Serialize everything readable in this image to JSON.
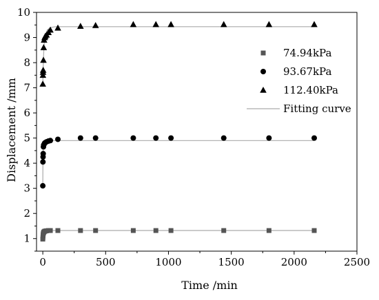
{
  "chart_data": {
    "type": "scatter",
    "xlabel": "Time /min",
    "ylabel": "Displacement /mm",
    "xlim": [
      -50,
      2500
    ],
    "ylim": [
      0.5,
      10
    ],
    "xticks": [
      "0",
      "500",
      "1000",
      "1500",
      "2000",
      "2500"
    ],
    "yticks": [
      "1",
      "2",
      "3",
      "4",
      "5",
      "6",
      "7",
      "8",
      "9",
      "10"
    ],
    "legend_position": "top-right",
    "colors": {
      "series_74": "#555555",
      "series_93": "#000000",
      "series_112": "#000000",
      "fit": "#aaaaaa",
      "axis": "#000000"
    },
    "series": [
      {
        "name": "74.94kPa",
        "marker": "square",
        "x": [
          0,
          1,
          2,
          3,
          5,
          7,
          10,
          15,
          20,
          30,
          45,
          60,
          120,
          300,
          420,
          720,
          900,
          1020,
          1440,
          1800,
          2160
        ],
        "y": [
          0.98,
          1.05,
          1.12,
          1.18,
          1.22,
          1.25,
          1.27,
          1.29,
          1.3,
          1.31,
          1.32,
          1.32,
          1.32,
          1.32,
          1.32,
          1.32,
          1.32,
          1.32,
          1.32,
          1.32,
          1.32
        ]
      },
      {
        "name": "93.67kPa",
        "marker": "circle",
        "x": [
          0,
          1,
          2,
          3,
          5,
          7,
          10,
          15,
          20,
          30,
          45,
          60,
          120,
          300,
          420,
          720,
          900,
          1020,
          1440,
          1800,
          2160
        ],
        "y": [
          3.1,
          4.05,
          4.25,
          4.38,
          4.65,
          4.72,
          4.75,
          4.8,
          4.82,
          4.85,
          4.88,
          4.9,
          4.95,
          5.0,
          5.0,
          5.0,
          5.0,
          5.0,
          5.0,
          5.0,
          5.0
        ]
      },
      {
        "name": "112.40kPa",
        "marker": "triangle",
        "x": [
          0,
          1,
          2,
          3,
          5,
          7,
          10,
          15,
          20,
          30,
          45,
          60,
          120,
          300,
          420,
          720,
          900,
          1020,
          1440,
          1800,
          2160
        ],
        "y": [
          7.15,
          7.5,
          7.62,
          7.7,
          8.1,
          8.6,
          8.9,
          9.0,
          9.05,
          9.1,
          9.2,
          9.3,
          9.38,
          9.45,
          9.48,
          9.52,
          9.52,
          9.52,
          9.52,
          9.52,
          9.52
        ]
      }
    ],
    "fit": {
      "name": "Fitting curve",
      "curves": [
        {
          "x": [
            0,
            2,
            5,
            10,
            20,
            40,
            80,
            2160
          ],
          "y": [
            0.95,
            1.1,
            1.22,
            1.28,
            1.31,
            1.32,
            1.32,
            1.32
          ]
        },
        {
          "x": [
            0,
            1,
            3,
            6,
            12,
            25,
            50,
            100,
            2160
          ],
          "y": [
            3.05,
            4.1,
            4.5,
            4.7,
            4.82,
            4.88,
            4.9,
            4.9,
            4.9
          ]
        },
        {
          "x": [
            0,
            2,
            5,
            10,
            20,
            35,
            60,
            100,
            2160
          ],
          "y": [
            7.1,
            7.6,
            8.1,
            8.7,
            9.1,
            9.3,
            9.4,
            9.43,
            9.43
          ]
        }
      ]
    }
  }
}
